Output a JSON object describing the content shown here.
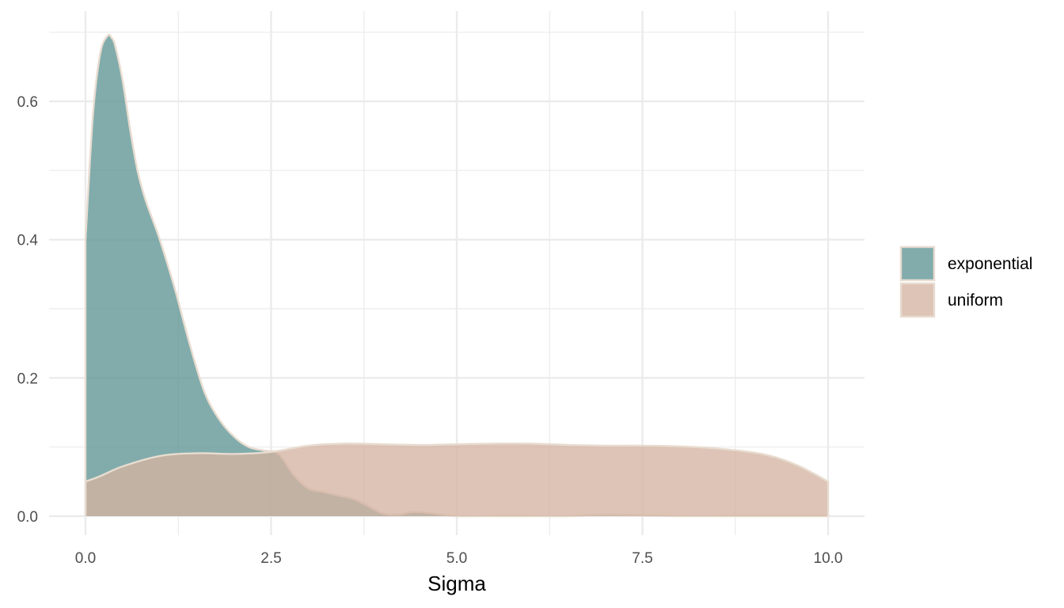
{
  "chart_data": {
    "type": "area",
    "subtype": "density",
    "title": "",
    "xlabel": "Sigma",
    "ylabel": "",
    "xlim": [
      0,
      10
    ],
    "ylim": [
      0,
      0.7
    ],
    "x_ticks": [
      "0.0",
      "2.5",
      "5.0",
      "7.5",
      "10.0"
    ],
    "y_ticks": [
      "0.0",
      "0.2",
      "0.4",
      "0.6"
    ],
    "grid": true,
    "legend_position": "right",
    "outline_color": "#e8dcd0",
    "series": [
      {
        "name": "exponential",
        "color": "#5f9595",
        "x": [
          0,
          0.1,
          0.2,
          0.3,
          0.35,
          0.4,
          0.5,
          0.6,
          0.7,
          0.8,
          0.9,
          1.0,
          1.2,
          1.4,
          1.6,
          1.8,
          2.0,
          2.2,
          2.4,
          2.6,
          2.8,
          3.0,
          3.2,
          3.4,
          3.6,
          3.8,
          4.0,
          4.2,
          4.4,
          4.6,
          4.8,
          5.0,
          5.5,
          6.0,
          6.5,
          7.0,
          7.5,
          8.0,
          8.5,
          9.0,
          9.5,
          10.0
        ],
        "values": [
          0.4,
          0.58,
          0.67,
          0.695,
          0.692,
          0.68,
          0.63,
          0.56,
          0.5,
          0.46,
          0.43,
          0.4,
          0.33,
          0.25,
          0.18,
          0.14,
          0.115,
          0.1,
          0.095,
          0.09,
          0.06,
          0.04,
          0.035,
          0.03,
          0.025,
          0.015,
          0.004,
          0.002,
          0.006,
          0.005,
          0.002,
          0.0,
          0.0,
          0.0,
          0.0,
          0.002,
          0.001,
          0.0,
          0.0,
          0.0,
          0.0,
          0.0
        ]
      },
      {
        "name": "uniform",
        "color": "#d4b3a2",
        "x": [
          0,
          0.2,
          0.5,
          1.0,
          1.5,
          2.0,
          2.5,
          3.0,
          3.5,
          4.0,
          4.5,
          5.0,
          5.5,
          6.0,
          6.5,
          7.0,
          7.5,
          8.0,
          8.5,
          9.0,
          9.3,
          9.6,
          9.8,
          10.0
        ],
        "values": [
          0.05,
          0.058,
          0.072,
          0.087,
          0.091,
          0.09,
          0.093,
          0.102,
          0.105,
          0.104,
          0.103,
          0.104,
          0.105,
          0.105,
          0.103,
          0.102,
          0.102,
          0.101,
          0.098,
          0.092,
          0.085,
          0.073,
          0.062,
          0.05
        ]
      }
    ]
  }
}
